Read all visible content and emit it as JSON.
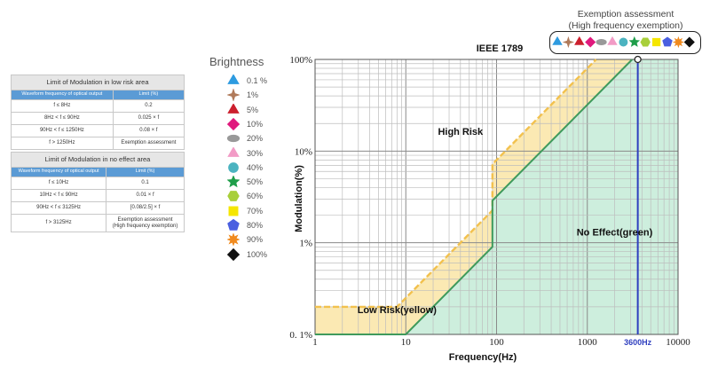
{
  "table_low_risk": {
    "caption": "Limit of Modulation in low risk area",
    "header": [
      "Waveform frequency of optical output",
      "Limit (%)"
    ],
    "rows": [
      [
        "f ≤ 8Hz",
        "0.2"
      ],
      [
        "8Hz < f ≤ 90Hz",
        "0.025 × f"
      ],
      [
        "90Hz < f ≤ 1250Hz",
        "0.08 × f"
      ],
      [
        "f > 1250Hz",
        "Exemption assessment"
      ]
    ]
  },
  "table_no_effect": {
    "caption": "Limit of Modulation in no effect area",
    "header": [
      "Waveform frequency of optical output",
      "Limit (%)"
    ],
    "rows": [
      [
        "f ≤ 10Hz",
        "0.1"
      ],
      [
        "10Hz < f ≤ 90Hz",
        "0.01 × f"
      ],
      [
        "90Hz < f ≤ 3125Hz",
        "[0.08/2.5] × f"
      ],
      [
        "f > 3125Hz",
        "Exemption assessment\n(High frequency exemption)"
      ]
    ]
  },
  "brightness_legend": {
    "title": "Brightness",
    "items": [
      {
        "label": "0.1 %",
        "shape": "triangle",
        "color": "#2e9be0"
      },
      {
        "label": "1%",
        "shape": "star4",
        "color": "#b07a5a"
      },
      {
        "label": "5%",
        "shape": "triangle",
        "color": "#cc1f2e"
      },
      {
        "label": "10%",
        "shape": "diamond",
        "color": "#e0197d"
      },
      {
        "label": "20%",
        "shape": "ellipse",
        "color": "#999999"
      },
      {
        "label": "30%",
        "shape": "triangle",
        "color": "#f29bc6"
      },
      {
        "label": "40%",
        "shape": "circle",
        "color": "#4bb3c0"
      },
      {
        "label": "50%",
        "shape": "star5",
        "color": "#1f9e4a"
      },
      {
        "label": "60%",
        "shape": "hexagon",
        "color": "#a8cf3a"
      },
      {
        "label": "70%",
        "shape": "square",
        "color": "#f5e600"
      },
      {
        "label": "80%",
        "shape": "pentagon",
        "color": "#4a5fe0"
      },
      {
        "label": "90%",
        "shape": "star8",
        "color": "#f08a1e"
      },
      {
        "label": "100%",
        "shape": "diamond",
        "color": "#111111"
      }
    ]
  },
  "exemption": {
    "title": "Exemption assessment",
    "subtitle": "(High frequency exemption)"
  },
  "chart_data": {
    "type": "area",
    "title": "IEEE 1789",
    "xlabel": "Frequency(Hz)",
    "ylabel": "Modulation(%)",
    "x_scale": "log",
    "y_scale": "log",
    "xlim": [
      1,
      10000
    ],
    "ylim": [
      0.1,
      100
    ],
    "x_ticks": [
      "1",
      "10",
      "100",
      "1000",
      "10000"
    ],
    "y_ticks": [
      "0. 1%",
      "1%",
      "10%",
      "100%"
    ],
    "grid": true,
    "series": [
      {
        "name": "Low Risk(yellow)",
        "color": "#f2c14e",
        "x": [
          1,
          8,
          90,
          90,
          1250
        ],
        "y": [
          0.2,
          0.2,
          2.25,
          7.2,
          100
        ]
      },
      {
        "name": "No Effect(green)",
        "color": "#3f9a5c",
        "x": [
          1,
          10,
          90,
          90,
          3125
        ],
        "y": [
          0.1,
          0.1,
          0.9,
          2.88,
          100
        ]
      }
    ],
    "regions": [
      {
        "label": "High Risk",
        "x": 40,
        "y": 15
      },
      {
        "label": "Low Risk(yellow)",
        "x": 8,
        "y": 0.17
      },
      {
        "label": "No Effect(green)",
        "x": 2000,
        "y": 1.2
      }
    ],
    "annotations": [
      {
        "label": "3600Hz",
        "x": 3600,
        "color": "#2f3fbf"
      }
    ]
  }
}
